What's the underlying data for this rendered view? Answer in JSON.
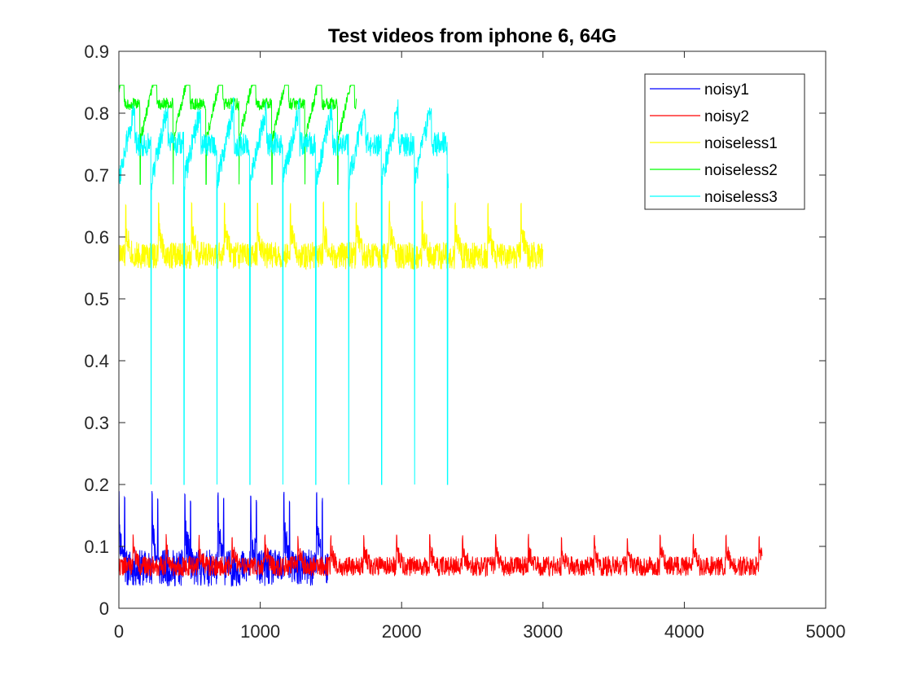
{
  "chart_data": {
    "type": "line",
    "title": "Test videos from iphone 6, 64G",
    "xlabel": "",
    "ylabel": "",
    "xlim": [
      0,
      5000
    ],
    "ylim": [
      0,
      0.9
    ],
    "xticks": [
      0,
      1000,
      2000,
      3000,
      4000,
      5000
    ],
    "yticks": [
      0,
      0.1,
      0.2,
      0.3,
      0.4,
      0.5,
      0.6,
      0.7,
      0.8,
      0.9
    ],
    "xtick_labels": [
      "0",
      "1000",
      "2000",
      "3000",
      "4000",
      "5000"
    ],
    "ytick_labels": [
      "0",
      "0.1",
      "0.2",
      "0.3",
      "0.4",
      "0.5",
      "0.6",
      "0.7",
      "0.8",
      "0.9"
    ],
    "grid": false,
    "legend_position": "top-right",
    "series": [
      {
        "name": "noisy1",
        "color": "#0000ff",
        "n": 1480,
        "base": 0.065,
        "noise": 0.03,
        "min": 0.015,
        "max": 0.19,
        "spike_period": 233,
        "spike_start": 0,
        "spike_value": 0.19,
        "spike_sub": 40,
        "seed": 11
      },
      {
        "name": "noisy2",
        "color": "#ff0000",
        "n": 4550,
        "base": 0.068,
        "noise": 0.016,
        "min": 0.03,
        "max": 0.125,
        "spike_period": 233,
        "spike_start": 100,
        "spike_value": 0.12,
        "seed": 22
      },
      {
        "name": "noiseless1",
        "color": "#ffff00",
        "n": 3000,
        "base": 0.57,
        "noise": 0.022,
        "min": 0.52,
        "max": 0.665,
        "spike_period": 233,
        "spike_start": 280,
        "spike_value": 0.66,
        "seed": 33
      },
      {
        "name": "noiseless2",
        "color": "#00ff00",
        "n": 1680,
        "base": 0.815,
        "noise": 0.01,
        "min": 0.68,
        "max": 0.845,
        "dip_period": 233,
        "dip_start": 150,
        "dip_value": 0.685,
        "seed": 44
      },
      {
        "name": "noiseless3",
        "color": "#00ffff",
        "n": 2330,
        "base": 0.75,
        "noise": 0.02,
        "min": 0.2,
        "max": 0.855,
        "dip_period": 233,
        "dip_start": 227,
        "dip_value": 0.2,
        "seed": 55
      }
    ]
  }
}
